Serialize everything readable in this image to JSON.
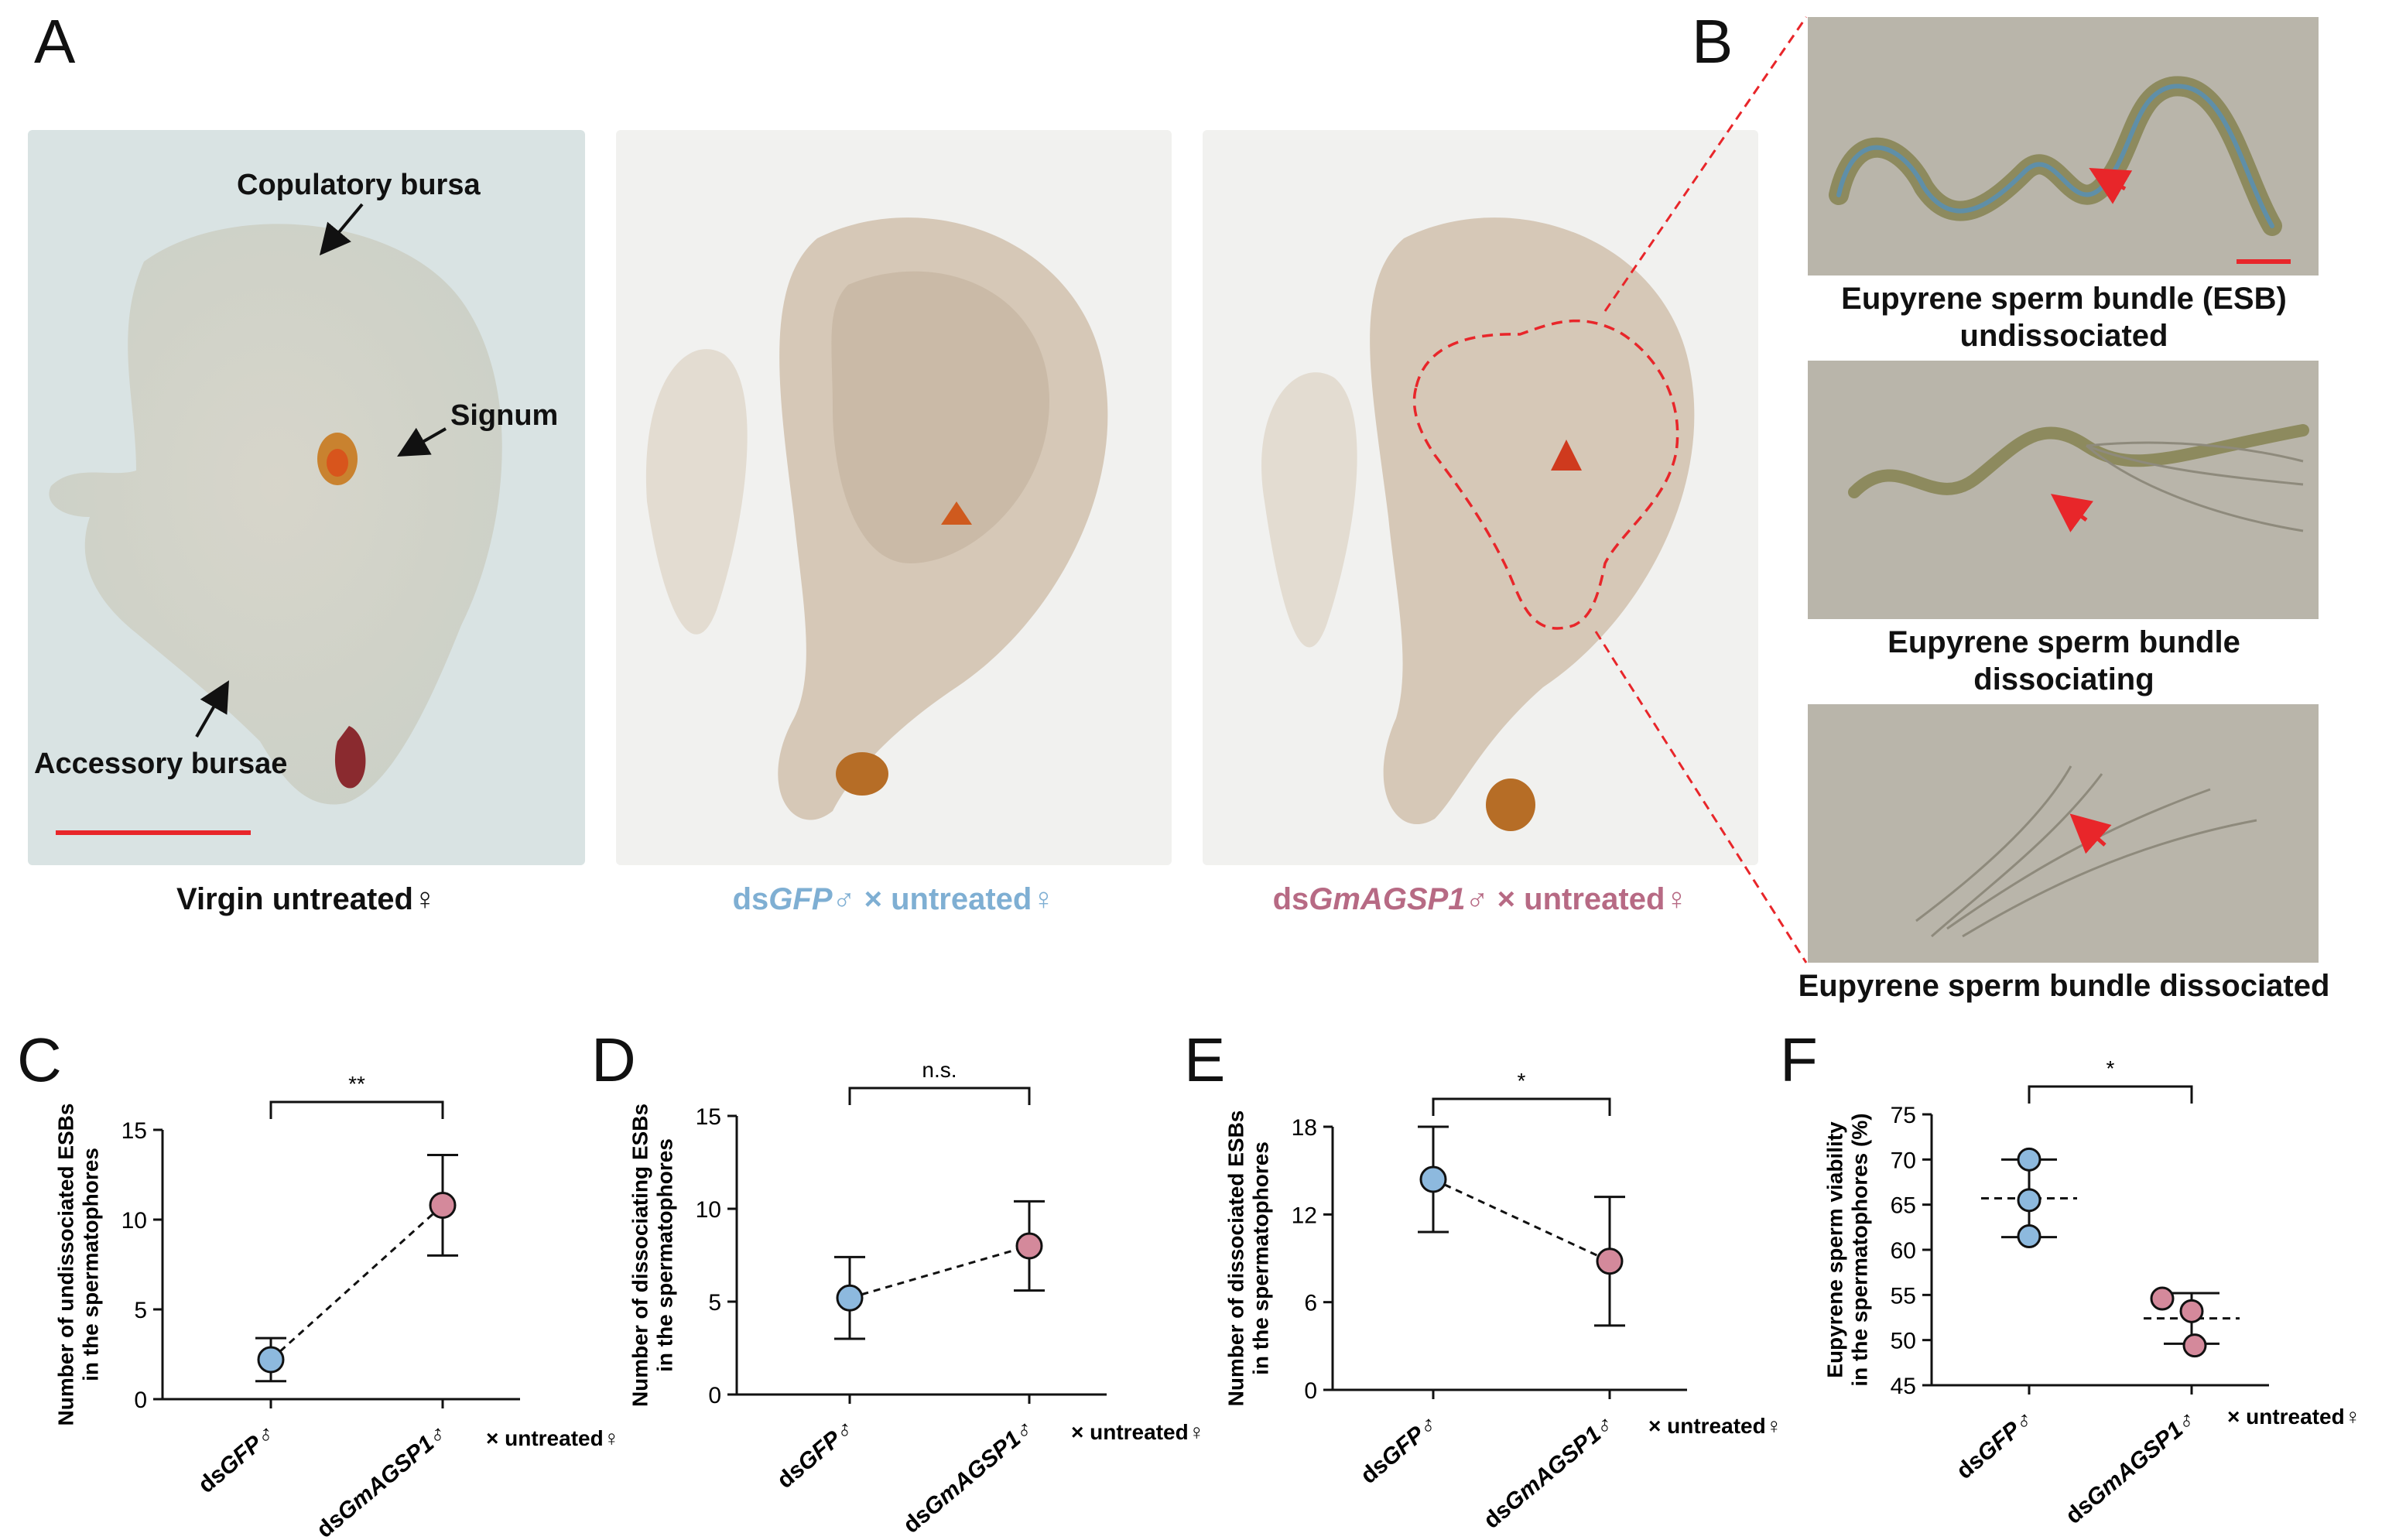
{
  "panels": {
    "A": "A",
    "B": "B",
    "C": "C",
    "D": "D",
    "E": "E",
    "F": "F"
  },
  "panel_a": {
    "labels": {
      "copulatory_bursa": "Copulatory bursa",
      "signum": "Signum",
      "accessory_bursae": "Accessory bursae"
    },
    "captions": {
      "c1": "Virgin untreated♀",
      "c2_pre": "ds",
      "c2_it": "GFP",
      "c2_post": "♂ × untreated♀",
      "c3_pre": "ds",
      "c3_it": "GmAGSP1",
      "c3_post": "♂ × untreated♀"
    }
  },
  "panel_b": {
    "captions": [
      "Eupyrene sperm bundle (ESB) undissociated",
      "Eupyrene sperm bundle dissociating",
      "Eupyrene sperm bundle dissociated"
    ]
  },
  "colors": {
    "blue": "#8db9de",
    "rose": "#d4899b",
    "scale_bar": "#e8262a",
    "outline": "#e8262a"
  },
  "x_labels": {
    "g1_pre": "ds",
    "g1_it": "GFP",
    "g1_post": "♂",
    "g2_pre": "ds",
    "g2_it": "GmAGSP1",
    "g2_post": "♂",
    "suffix": "× untreated♀"
  },
  "chart_data": [
    {
      "id": "C",
      "type": "line",
      "ylabel": "Number of undissociated ESBs in the spermatophores",
      "ylim": [
        0,
        15
      ],
      "yticks": [
        0,
        5,
        10,
        15
      ],
      "categories": [
        "dsGFP♂",
        "dsGmAGSP1♂"
      ],
      "values": [
        2.2,
        10.8
      ],
      "err_low": [
        1.0,
        8.0
      ],
      "err_high": [
        3.4,
        13.6
      ],
      "significance": "**"
    },
    {
      "id": "D",
      "type": "line",
      "ylabel": "Number of dissociating ESBs in the spermatophores",
      "ylim": [
        0,
        15
      ],
      "yticks": [
        0,
        5,
        10,
        15
      ],
      "categories": [
        "dsGFP♂",
        "dsGmAGSP1♂"
      ],
      "values": [
        5.2,
        8.0
      ],
      "err_low": [
        3.0,
        5.6
      ],
      "err_high": [
        7.4,
        10.4
      ],
      "significance": "n.s."
    },
    {
      "id": "E",
      "type": "line",
      "ylabel": "Number of dissociated ESBs in the spermatophores",
      "ylim": [
        0,
        18
      ],
      "yticks": [
        0,
        6,
        12,
        18
      ],
      "categories": [
        "dsGFP♂",
        "dsGmAGSP1♂"
      ],
      "values": [
        14.4,
        8.8
      ],
      "err_low": [
        10.8,
        4.4
      ],
      "err_high": [
        18.0,
        13.2
      ],
      "significance": "*"
    },
    {
      "id": "F",
      "type": "scatter",
      "ylabel": "Eupyrene sperm viability in the spermatophores (%)",
      "ylim": [
        45,
        75
      ],
      "yticks": [
        45,
        50,
        55,
        60,
        65,
        70,
        75
      ],
      "categories": [
        "dsGFP♂",
        "dsGmAGSP1♂"
      ],
      "points": [
        [
          70.0,
          65.5,
          61.5
        ],
        [
          54.6,
          53.2,
          49.4
        ]
      ],
      "means": [
        65.7,
        52.4
      ],
      "err_low": [
        61.4,
        49.6
      ],
      "err_high": [
        70.0,
        55.2
      ],
      "significance": "*"
    }
  ]
}
